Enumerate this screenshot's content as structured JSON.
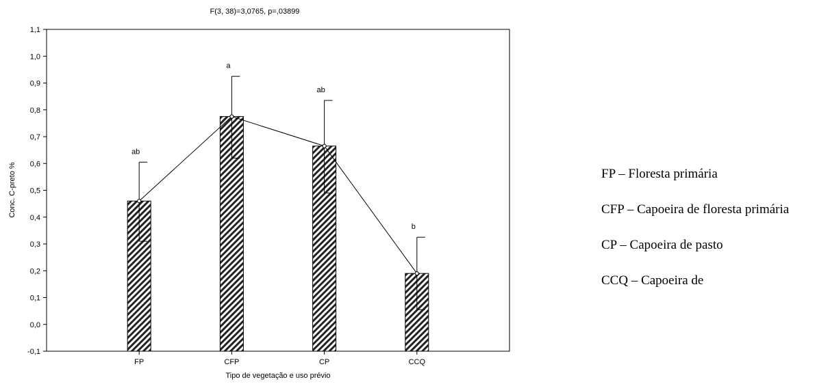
{
  "chart_data": {
    "type": "bar",
    "title": "F(3, 38)=3,0765, p=,03899",
    "xlabel": "Tipo de vegetação e uso prévio",
    "ylabel": "Conc. C-preto %",
    "categories": [
      "FP",
      "CFP",
      "CP",
      "CCQ"
    ],
    "values": [
      0.46,
      0.775,
      0.665,
      0.19
    ],
    "error_upper": [
      0.605,
      0.925,
      0.835,
      0.325
    ],
    "error_lower": [
      0.31,
      0.62,
      0.49,
      0.055
    ],
    "group_letters": [
      "ab",
      "a",
      "ab",
      "b"
    ],
    "ylim": [
      -0.1,
      1.1
    ],
    "yticks": [
      "-0,1",
      "0,0",
      "0,1",
      "0,2",
      "0,3",
      "0,4",
      "0,5",
      "0,6",
      "0,7",
      "0,8",
      "0,9",
      "1,0",
      "1,1"
    ],
    "bar_pattern": "diagonal-hatch",
    "line_connecting_means": true,
    "grid": false
  },
  "legend": {
    "items": [
      "FP – Floresta primária",
      "CFP – Capoeira de floresta primária",
      "CP – Capoeira de pasto",
      "CCQ – Capoeira de"
    ]
  }
}
